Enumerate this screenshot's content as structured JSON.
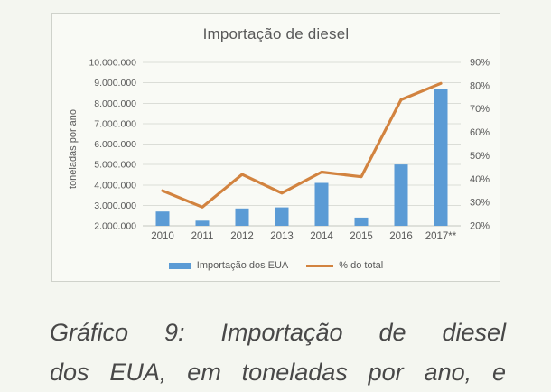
{
  "chart_data": {
    "type": "combo-bar-line",
    "title": "Importação de diesel",
    "categories": [
      "2010",
      "2011",
      "2012",
      "2013",
      "2014",
      "2015",
      "2016",
      "2017**"
    ],
    "series": [
      {
        "name": "Importação dos EUA",
        "type": "bar",
        "axis": "left",
        "color": "#5b9bd5",
        "values": [
          2700000,
          2250000,
          2850000,
          2900000,
          4100000,
          2400000,
          5000000,
          8700000
        ]
      },
      {
        "name": "% do total",
        "type": "line",
        "axis": "right",
        "color": "#d2833f",
        "values": [
          35,
          28,
          42,
          34,
          43,
          41,
          74,
          81
        ]
      }
    ],
    "left_axis": {
      "label": "toneladas por ano",
      "min": 2000000,
      "max": 10000000,
      "step": 1000000,
      "ticks": [
        "2.000.000",
        "3.000.000",
        "4.000.000",
        "5.000.000",
        "6.000.000",
        "7.000.000",
        "8.000.000",
        "9.000.000",
        "10.000.000"
      ]
    },
    "right_axis": {
      "min": 20,
      "max": 90,
      "step": 10,
      "ticks": [
        "20%",
        "30%",
        "40%",
        "50%",
        "60%",
        "70%",
        "80%",
        "90%"
      ]
    },
    "grid": true,
    "legend_position": "bottom"
  },
  "caption": {
    "line1": "Gráfico 9: Importação de diesel",
    "line2": "dos EUA, em toneladas por ano, e"
  },
  "colors": {
    "bar": "#5b9bd5",
    "line": "#d2833f",
    "page_bg": "#f4f6f0",
    "card_bg": "#f9faf5",
    "grid": "#dbddd7",
    "text": "#595959",
    "caption_text": "#484848"
  }
}
